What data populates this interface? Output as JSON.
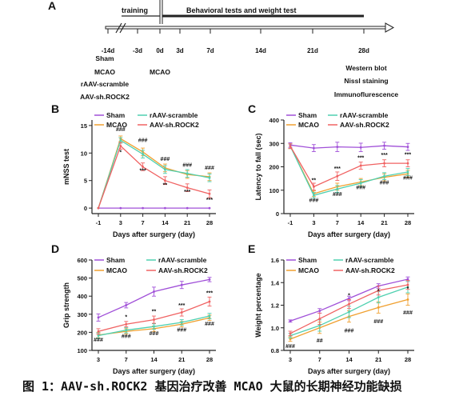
{
  "caption": "图 1：AAV-sh.ROCK2 基因治疗改善 MCAO 大鼠的长期神经功能缺损",
  "colors": {
    "sham": "#a050d8",
    "mcao": "#f0a030",
    "scramble": "#4fd0b0",
    "rock2": "#f06262",
    "axis": "#222"
  },
  "panelA": {
    "letter": "A",
    "training": "training",
    "behavioral": "Behavioral tests and weight test",
    "ticks": [
      "-14d",
      "-3d",
      "0d",
      "3d",
      "7d",
      "14d",
      "21d",
      "28d"
    ],
    "left_labels": [
      "Sham",
      "MCAO",
      "rAAV-scramble",
      "AAV-sh.ROCK2"
    ],
    "mcao_label": "MCAO",
    "right_labels": [
      "Western blot",
      "Nissl staining",
      "Immunoflurescence"
    ]
  },
  "chart_data": [
    {
      "id": "B",
      "type": "line",
      "letter": "B",
      "xlabel": "Days after surgery (day)",
      "ylabel": "mNSS test",
      "x": [
        "-1",
        "3",
        "7",
        "14",
        "21",
        "28"
      ],
      "ylim": [
        -1,
        16
      ],
      "yticks": [
        0,
        5,
        10,
        15
      ],
      "legend": [
        "Sham",
        "MCAO",
        "rAAV-scramble",
        "AAV-sh.ROCK2"
      ],
      "series": [
        {
          "name": "Sham",
          "values": [
            0,
            0,
            0,
            0,
            0,
            0
          ],
          "err": [
            0,
            0,
            0,
            0,
            0,
            0
          ]
        },
        {
          "name": "MCAO",
          "values": [
            0,
            12.6,
            10.2,
            7.3,
            6.1,
            5.7
          ],
          "err": [
            0,
            0.5,
            0.7,
            0.7,
            0.7,
            0.7
          ]
        },
        {
          "name": "rAAV-scramble",
          "values": [
            0,
            12.3,
            9.8,
            7.0,
            6.3,
            5.5
          ],
          "err": [
            0,
            0.5,
            0.7,
            0.7,
            0.7,
            0.7
          ]
        },
        {
          "name": "AAV-sh.ROCK2",
          "values": [
            0,
            11.3,
            7.5,
            5.0,
            3.7,
            2.6
          ],
          "err": [
            0,
            0.6,
            0.7,
            0.7,
            0.7,
            0.7
          ]
        }
      ],
      "annotations": [
        {
          "x": "3",
          "y": 14.0,
          "text": "###"
        },
        {
          "x": "7",
          "y": 12.0,
          "text": "###"
        },
        {
          "x": "14",
          "y": 8.6,
          "text": "###"
        },
        {
          "x": "21",
          "y": 7.5,
          "text": "###"
        },
        {
          "x": "28",
          "y": 7.0,
          "text": "###"
        },
        {
          "x": "3",
          "y": 9.8,
          "text": "*"
        },
        {
          "x": "7",
          "y": 6.5,
          "text": "***"
        },
        {
          "x": "14",
          "y": 3.9,
          "text": "**"
        },
        {
          "x": "21",
          "y": 2.6,
          "text": "***"
        },
        {
          "x": "28",
          "y": 1.2,
          "text": "***"
        }
      ]
    },
    {
      "id": "C",
      "type": "line",
      "letter": "C",
      "xlabel": "Days after surgery (day)",
      "ylabel": "Latency to fall (sec)",
      "x": [
        "-1",
        "3",
        "7",
        "14",
        "21",
        "28"
      ],
      "ylim": [
        0,
        400
      ],
      "yticks": [
        0,
        100,
        200,
        300,
        400
      ],
      "legend": [
        "Sham",
        "MCAO",
        "rAAV-scramble",
        "AAV-sh.ROCK2"
      ],
      "series": [
        {
          "name": "Sham",
          "values": [
            293,
            280,
            285,
            283,
            290,
            285
          ],
          "err": [
            10,
            15,
            20,
            18,
            15,
            15
          ]
        },
        {
          "name": "MCAO",
          "values": [
            288,
            85,
            115,
            135,
            155,
            170
          ],
          "err": [
            10,
            12,
            15,
            15,
            15,
            15
          ]
        },
        {
          "name": "rAAV-scramble",
          "values": [
            288,
            78,
            105,
            130,
            160,
            178
          ],
          "err": [
            10,
            12,
            15,
            15,
            15,
            15
          ]
        },
        {
          "name": "AAV-sh.ROCK2",
          "values": [
            288,
            115,
            160,
            205,
            215,
            215
          ],
          "err": [
            10,
            15,
            18,
            15,
            15,
            15
          ]
        }
      ],
      "annotations": [
        {
          "x": "3",
          "y": 135,
          "text": "**"
        },
        {
          "x": "7",
          "y": 185,
          "text": "***"
        },
        {
          "x": "14",
          "y": 230,
          "text": "***"
        },
        {
          "x": "21",
          "y": 243,
          "text": "***"
        },
        {
          "x": "28",
          "y": 245,
          "text": "***"
        },
        {
          "x": "3",
          "y": 50,
          "text": "###"
        },
        {
          "x": "7",
          "y": 75,
          "text": "###"
        },
        {
          "x": "14",
          "y": 105,
          "text": "###"
        },
        {
          "x": "21",
          "y": 125,
          "text": "###"
        },
        {
          "x": "28",
          "y": 145,
          "text": "###"
        }
      ]
    },
    {
      "id": "D",
      "type": "line",
      "letter": "D",
      "xlabel": "Days after surgery (day)",
      "ylabel": "Grip strength",
      "x": [
        "3",
        "7",
        "14",
        "21",
        "28"
      ],
      "ylim": [
        100,
        600
      ],
      "yticks": [
        100,
        200,
        300,
        400,
        500,
        600
      ],
      "legend": [
        "Sham",
        "MCAO",
        "rAAV-scramble",
        "AAV-sh.ROCK2"
      ],
      "series": [
        {
          "name": "Sham",
          "values": [
            282,
            350,
            425,
            462,
            492
          ],
          "err": [
            20,
            15,
            25,
            20,
            12
          ]
        },
        {
          "name": "MCAO",
          "values": [
            185,
            205,
            220,
            245,
            280
          ],
          "err": [
            15,
            15,
            15,
            15,
            15
          ]
        },
        {
          "name": "rAAV-scramble",
          "values": [
            182,
            212,
            232,
            255,
            290
          ],
          "err": [
            15,
            15,
            15,
            15,
            15
          ]
        },
        {
          "name": "AAV-sh.ROCK2",
          "values": [
            205,
            245,
            270,
            310,
            370
          ],
          "err": [
            15,
            15,
            20,
            20,
            25
          ]
        }
      ],
      "annotations": [
        {
          "x": "7",
          "y": 275,
          "text": "*"
        },
        {
          "x": "14",
          "y": 305,
          "text": "**"
        },
        {
          "x": "21",
          "y": 340,
          "text": "***"
        },
        {
          "x": "28",
          "y": 407,
          "text": "***"
        },
        {
          "x": "3",
          "y": 148,
          "text": "###"
        },
        {
          "x": "7",
          "y": 168,
          "text": "###"
        },
        {
          "x": "14",
          "y": 185,
          "text": "###"
        },
        {
          "x": "21",
          "y": 205,
          "text": "###"
        },
        {
          "x": "28",
          "y": 237,
          "text": "###"
        }
      ]
    },
    {
      "id": "E",
      "type": "line",
      "letter": "E",
      "xlabel": "Days after surgery (day)",
      "ylabel": "Weight percentage",
      "x": [
        "3",
        "7",
        "14",
        "21",
        "28"
      ],
      "ylim": [
        0.8,
        1.6
      ],
      "yticks": [
        0.8,
        1.0,
        1.2,
        1.4,
        1.6
      ],
      "legend": [
        "Sham",
        "MCAO",
        "rAAV-scramble",
        "AAV-sh.ROCK2"
      ],
      "series": [
        {
          "name": "Sham",
          "values": [
            1.06,
            1.15,
            1.26,
            1.37,
            1.43
          ],
          "err": [
            0.01,
            0.02,
            0.02,
            0.02,
            0.02
          ]
        },
        {
          "name": "MCAO",
          "values": [
            0.9,
            1.0,
            1.1,
            1.18,
            1.25
          ],
          "err": [
            0.02,
            0.05,
            0.05,
            0.05,
            0.05
          ]
        },
        {
          "name": "rAAV-scramble",
          "values": [
            0.93,
            1.02,
            1.14,
            1.27,
            1.36
          ],
          "err": [
            0.02,
            0.05,
            0.05,
            0.05,
            0.05
          ]
        },
        {
          "name": "AAV-sh.ROCK2",
          "values": [
            0.95,
            1.08,
            1.21,
            1.33,
            1.38
          ],
          "err": [
            0.02,
            0.05,
            0.04,
            0.04,
            0.04
          ]
        }
      ],
      "annotations": [
        {
          "x": "14",
          "y": 1.27,
          "text": "*"
        },
        {
          "x": "21",
          "y": 1.31,
          "text": "*"
        },
        {
          "x": "28",
          "y": 1.33,
          "text": "*"
        },
        {
          "x": "3",
          "y": 0.82,
          "text": "###"
        },
        {
          "x": "7",
          "y": 0.87,
          "text": "##"
        },
        {
          "x": "14",
          "y": 0.96,
          "text": "###"
        },
        {
          "x": "21",
          "y": 1.04,
          "text": "###"
        },
        {
          "x": "28",
          "y": 1.12,
          "text": "###"
        }
      ]
    }
  ]
}
